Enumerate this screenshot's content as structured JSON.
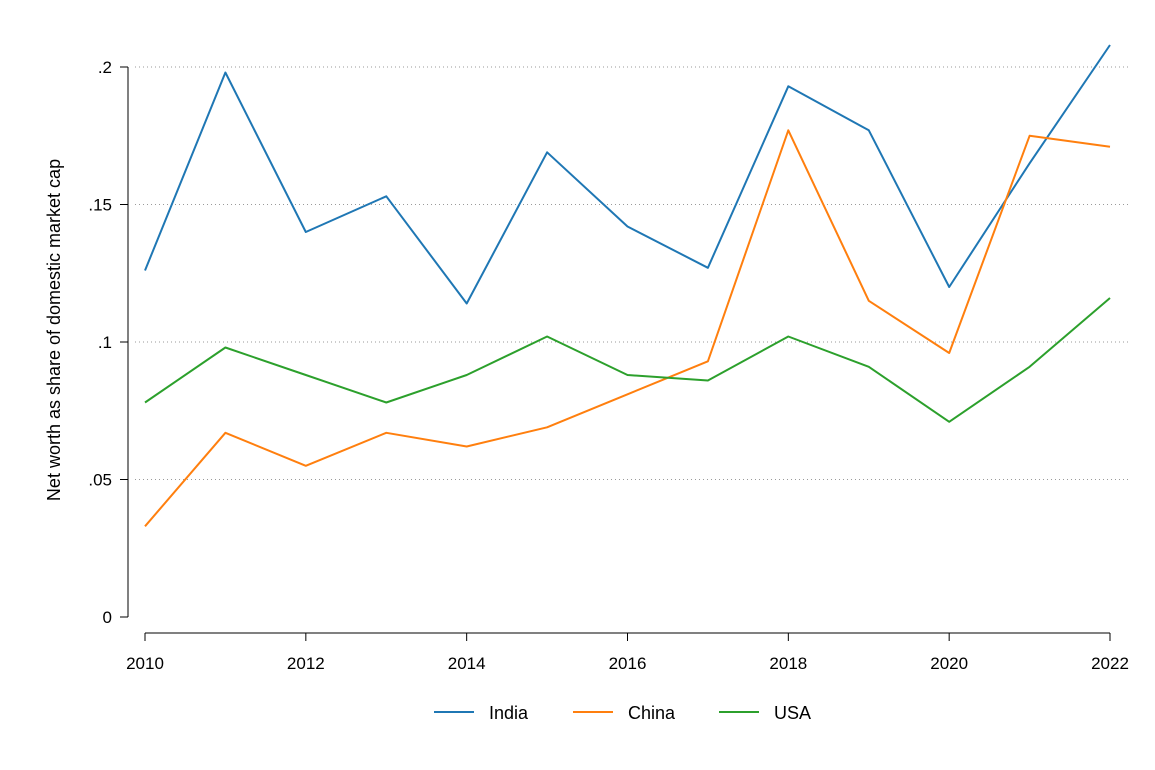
{
  "chart_data": {
    "type": "line",
    "title": "",
    "xlabel": "",
    "ylabel": "Net worth as share of domestic market cap",
    "x": [
      2010,
      2011,
      2012,
      2013,
      2014,
      2015,
      2016,
      2017,
      2018,
      2019,
      2020,
      2021,
      2022
    ],
    "xlim": [
      2010,
      2022
    ],
    "ylim": [
      0,
      0.2
    ],
    "x_ticks": [
      2010,
      2012,
      2014,
      2016,
      2018,
      2020,
      2022
    ],
    "x_tick_labels": [
      "2010",
      "2012",
      "2014",
      "2016",
      "2018",
      "2020",
      "2022"
    ],
    "y_ticks": [
      0,
      0.05,
      0.1,
      0.15,
      0.2
    ],
    "y_tick_labels": [
      "0",
      ".05",
      ".1",
      ".15",
      ".2"
    ],
    "grid": "horizontal dotted",
    "legend_position": "bottom",
    "series": [
      {
        "name": "India",
        "color": "#1f77b4",
        "values": [
          0.126,
          0.198,
          0.14,
          0.153,
          0.114,
          0.169,
          0.142,
          0.127,
          0.193,
          0.177,
          0.12,
          0.165,
          0.208
        ]
      },
      {
        "name": "China",
        "color": "#ff7f0e",
        "values": [
          0.033,
          0.067,
          0.055,
          0.067,
          0.062,
          0.069,
          0.081,
          0.093,
          0.177,
          0.115,
          0.096,
          0.175,
          0.171
        ]
      },
      {
        "name": "USA",
        "color": "#2ca02c",
        "values": [
          0.078,
          0.098,
          0.088,
          0.078,
          0.088,
          0.102,
          0.088,
          0.086,
          0.102,
          0.091,
          0.071,
          0.091,
          0.116
        ]
      }
    ]
  }
}
